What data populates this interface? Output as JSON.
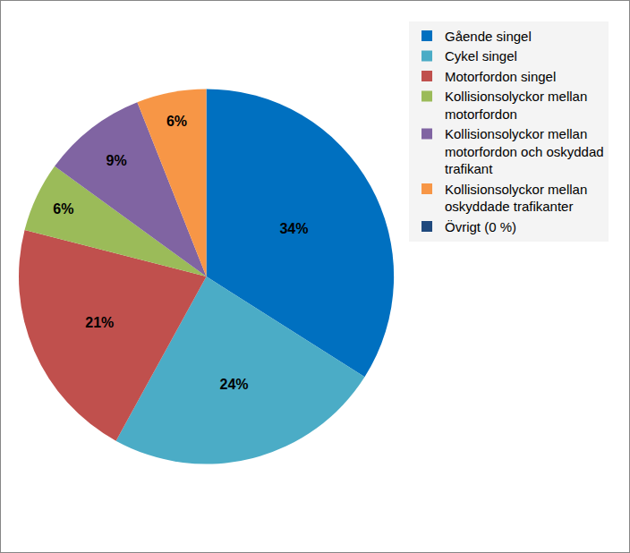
{
  "chart_data": {
    "type": "pie",
    "categories": [
      "Gående singel",
      "Cykel singel",
      "Motorfordon singel",
      "Kollisionsolyckor mellan motorfordon",
      "Kollisionsolyckor mellan motorfordon och oskyddad trafikant",
      "Kollisionsolyckor mellan oskyddade trafikanter",
      "Övrigt (0 %)"
    ],
    "values": [
      34,
      24,
      21,
      6,
      9,
      6,
      0
    ],
    "value_labels": [
      "34%",
      "24%",
      "21%",
      "6%",
      "9%",
      "6%",
      null
    ],
    "colors": [
      "#0070C0",
      "#4BACC6",
      "#C0504D",
      "#9BBB59",
      "#8064A2",
      "#F79646",
      "#1F497D"
    ],
    "data_labels": true,
    "legend": "right"
  }
}
